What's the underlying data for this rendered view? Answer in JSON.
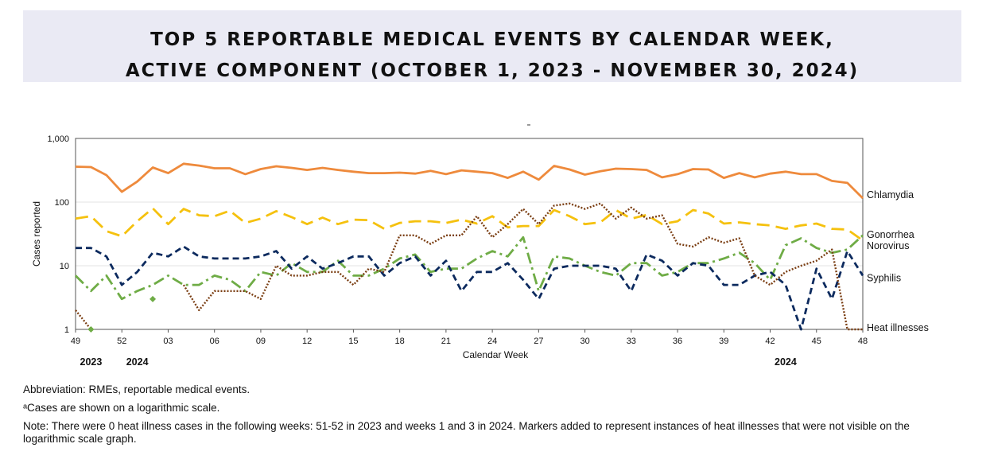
{
  "title_lines": [
    "TOP 5 REPORTABLE MEDICAL EVENTS BY CALENDAR WEEK,",
    "ACTIVE COMPONENT (OCTOBER 1, 2023 - NOVEMBER 30, 2024)"
  ],
  "footnotes": {
    "abbreviation": "Abbreviation: RMEs, reportable medical events.",
    "scale": "ᵃCases are shown on a logarithmic scale.",
    "note": "Note: There were 0 heat illness cases in the following weeks: 51-52 in 2023 and weeks 1 and 3 in 2024. Markers added to represent instances of heat illnesses that were not visible on the logarithmic scale graph."
  },
  "chart_data": {
    "type": "line",
    "title": "",
    "xlabel": "Calendar Week",
    "ylabel": "Cases reported",
    "y_scale": "log",
    "ylim": [
      1,
      1000
    ],
    "y_ticks": [
      "1",
      "10",
      "100",
      "1,000"
    ],
    "y_tick_values": [
      1,
      10,
      100,
      1000
    ],
    "grid": "horizontal",
    "legend": "series labels at right end of lines",
    "weeks": [
      49,
      50,
      51,
      52,
      1,
      2,
      3,
      4,
      5,
      6,
      7,
      8,
      9,
      10,
      11,
      12,
      13,
      14,
      15,
      16,
      17,
      18,
      19,
      20,
      21,
      22,
      23,
      24,
      25,
      26,
      27,
      28,
      29,
      30,
      31,
      32,
      33,
      34,
      35,
      36,
      37,
      38,
      39,
      40,
      41,
      42,
      43,
      44,
      45,
      46,
      47,
      48
    ],
    "x_tick_labels": [
      "49",
      "52",
      "03",
      "06",
      "09",
      "12",
      "15",
      "18",
      "21",
      "24",
      "27",
      "30",
      "33",
      "36",
      "39",
      "42",
      "45",
      "48"
    ],
    "year_labels": [
      {
        "text": "2023",
        "week_index": 1
      },
      {
        "text": "2024",
        "week_index": 4
      },
      {
        "text": "2024",
        "week_index": 46
      }
    ],
    "series": [
      {
        "name": "Chlamydia",
        "color": "#ee8a3c",
        "dash": "solid",
        "values": [
          360,
          355,
          265,
          145,
          210,
          350,
          285,
          400,
          375,
          340,
          340,
          275,
          330,
          365,
          345,
          320,
          345,
          320,
          300,
          285,
          285,
          290,
          280,
          310,
          275,
          315,
          300,
          285,
          240,
          300,
          225,
          370,
          325,
          270,
          305,
          335,
          330,
          320,
          245,
          275,
          330,
          325,
          240,
          285,
          245,
          280,
          300,
          275,
          275,
          215,
          200,
          115
        ]
      },
      {
        "name": "Norovirus",
        "color": "#f5c10e",
        "dash": "long",
        "values": [
          55,
          60,
          35,
          29,
          50,
          80,
          45,
          78,
          62,
          60,
          73,
          47,
          55,
          72,
          58,
          45,
          57,
          45,
          53,
          52,
          38,
          47,
          50,
          50,
          47,
          53,
          46,
          60,
          40,
          42,
          42,
          75,
          60,
          45,
          48,
          75,
          55,
          63,
          45,
          50,
          75,
          66,
          46,
          48,
          45,
          43,
          38,
          43,
          46,
          38,
          37,
          25
        ]
      },
      {
        "name": "Gonorrhea",
        "color": "#6fac46",
        "dash": "dashdot",
        "values": [
          7,
          4,
          7,
          3,
          4,
          5,
          7,
          5,
          5,
          7,
          6,
          4,
          8,
          7,
          11,
          8,
          8,
          12,
          7,
          7,
          9,
          13,
          15,
          8,
          9,
          9,
          13,
          17,
          14,
          28,
          4,
          14,
          13,
          10,
          8,
          7,
          11,
          11,
          7,
          8,
          11,
          11,
          13,
          16,
          11,
          6,
          21,
          27,
          19,
          16,
          18,
          30
        ]
      },
      {
        "name": "Syphilis",
        "color": "#0c2a5e",
        "dash": "dashed",
        "values": [
          19,
          19,
          14,
          5,
          8,
          16,
          14,
          20,
          14,
          13,
          13,
          13,
          14,
          17,
          9,
          14,
          9,
          11,
          14,
          14,
          7,
          11,
          14,
          7,
          12,
          4,
          8,
          8,
          11,
          6,
          3,
          9,
          10,
          10,
          10,
          9,
          4,
          15,
          12,
          7,
          11,
          10,
          5,
          5,
          7,
          8,
          5,
          1,
          9,
          3,
          17,
          7
        ]
      },
      {
        "name": "Heat illnesses",
        "color": "#7b3f14",
        "dash": "dotted",
        "values": [
          2,
          1,
          null,
          null,
          null,
          null,
          null,
          5,
          2,
          4,
          4,
          4,
          3,
          10,
          7,
          7,
          8,
          8,
          5,
          9,
          8,
          30,
          30,
          22,
          30,
          30,
          60,
          28,
          45,
          78,
          45,
          88,
          95,
          78,
          95,
          55,
          82,
          55,
          62,
          22,
          20,
          28,
          23,
          27,
          7,
          5,
          8,
          10,
          12,
          18,
          1,
          1
        ]
      }
    ],
    "markers": [
      {
        "series": "Heat illnesses",
        "week_index": 1,
        "value": 1,
        "color": "#6fac46"
      },
      {
        "series": "Heat illnesses",
        "week_index": 5,
        "value": 3,
        "color": "#6fac46"
      }
    ]
  }
}
